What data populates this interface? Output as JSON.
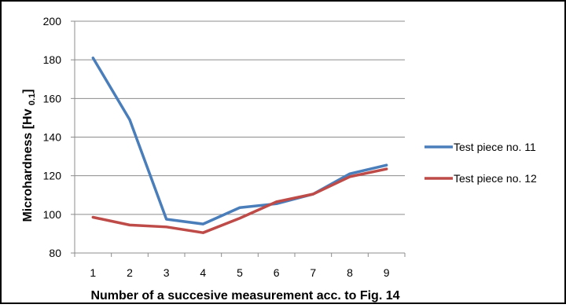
{
  "chart_data": {
    "type": "line",
    "title": "",
    "xlabel": "Number of a succesive measurement acc. to Fig. 14",
    "ylabel": "Microhardness [Hv 0.1]",
    "ylabel_main": "Microhardness [Hv ",
    "ylabel_sub": "0.1",
    "ylabel_end": "]",
    "x": [
      1,
      2,
      3,
      4,
      5,
      6,
      7,
      8,
      9
    ],
    "ylim": [
      80,
      200
    ],
    "yticks": [
      80,
      100,
      120,
      140,
      160,
      180,
      200
    ],
    "grid": true,
    "legend_position": "right",
    "series": [
      {
        "name": "Test piece no. 11",
        "color": "#4a7ebb",
        "values": [
          181,
          149,
          97.5,
          95,
          103.5,
          105.5,
          110.5,
          121,
          125.5
        ]
      },
      {
        "name": "Test piece no. 12",
        "color": "#be4b48",
        "values": [
          98.5,
          94.5,
          93.5,
          90.5,
          98,
          106.5,
          110.5,
          119.5,
          123.5
        ]
      }
    ]
  }
}
